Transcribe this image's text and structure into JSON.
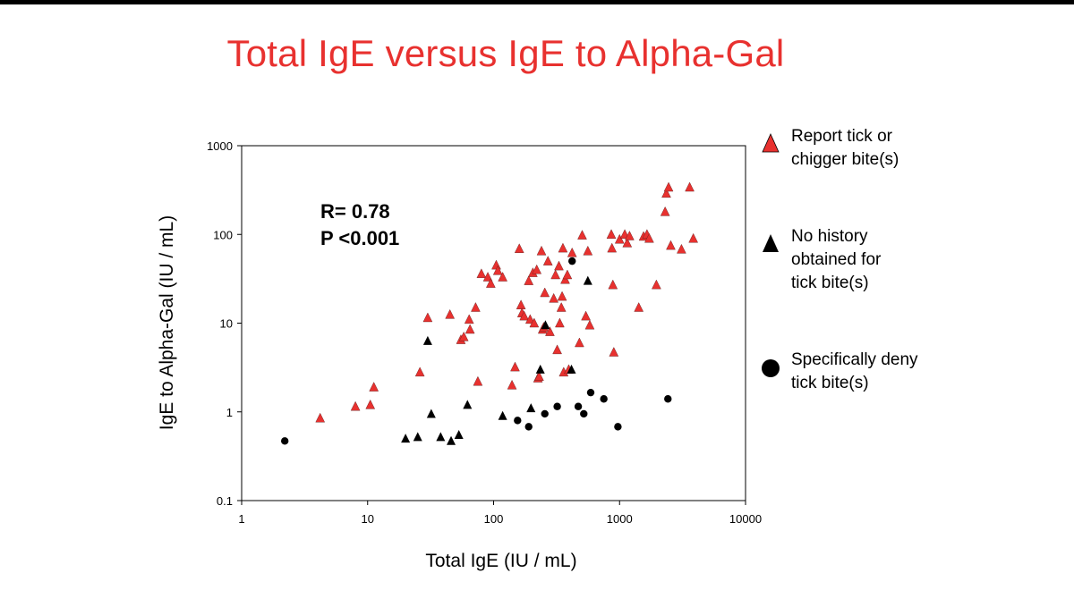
{
  "title": "Total IgE versus IgE to Alpha-Gal",
  "colors": {
    "title": "#e8312f",
    "red_marker": "#e8312f",
    "black_marker": "#000000"
  },
  "legend": [
    {
      "label": "Report tick or\nchigger bite(s)",
      "marker": "red-triangle"
    },
    {
      "label": "No history\nobtained for\ntick bite(s)",
      "marker": "black-triangle"
    },
    {
      "label": "Specifically deny\ntick bite(s)",
      "marker": "black-circle"
    }
  ],
  "chart_data": {
    "type": "scatter",
    "xlabel": "Total IgE (IU / mL)",
    "ylabel": "IgE to Alpha-Gal (IU / mL)",
    "xscale": "log",
    "yscale": "log",
    "xlim": [
      1,
      10000
    ],
    "ylim": [
      0.1,
      1000
    ],
    "xticks": [
      "1",
      "10",
      "100",
      "1000",
      "10000"
    ],
    "yticks": [
      "0.1",
      "1",
      "10",
      "100",
      "1000"
    ],
    "grid": false,
    "legend_position": "right",
    "annotations": [
      "R= 0.78",
      "P <0.001"
    ],
    "series": [
      {
        "name": "Report tick or chigger bite(s)",
        "marker": "triangle",
        "color": "#e8312f",
        "points": [
          [
            4.2,
            0.85
          ],
          [
            8,
            1.15
          ],
          [
            10.5,
            1.2
          ],
          [
            11.2,
            1.9
          ],
          [
            26,
            2.8
          ],
          [
            30,
            11.5
          ],
          [
            45,
            12.5
          ],
          [
            55,
            6.5
          ],
          [
            58,
            7
          ],
          [
            64,
            11
          ],
          [
            65,
            8.5
          ],
          [
            72,
            15
          ],
          [
            75,
            2.2
          ],
          [
            80,
            36
          ],
          [
            90,
            33
          ],
          [
            95,
            28
          ],
          [
            105,
            45
          ],
          [
            108,
            39
          ],
          [
            118,
            33
          ],
          [
            140,
            2
          ],
          [
            148,
            3.2
          ],
          [
            160,
            69
          ],
          [
            165,
            16
          ],
          [
            168,
            13
          ],
          [
            175,
            12
          ],
          [
            190,
            30
          ],
          [
            195,
            11
          ],
          [
            205,
            37
          ],
          [
            210,
            10
          ],
          [
            220,
            40
          ],
          [
            225,
            2.4
          ],
          [
            230,
            2.5
          ],
          [
            240,
            65
          ],
          [
            245,
            8.5
          ],
          [
            250,
            9
          ],
          [
            255,
            22
          ],
          [
            270,
            50
          ],
          [
            280,
            8
          ],
          [
            300,
            19
          ],
          [
            310,
            35
          ],
          [
            320,
            5
          ],
          [
            330,
            44
          ],
          [
            335,
            10
          ],
          [
            345,
            15
          ],
          [
            350,
            20
          ],
          [
            355,
            70
          ],
          [
            360,
            2.8
          ],
          [
            370,
            31
          ],
          [
            385,
            35
          ],
          [
            395,
            3
          ],
          [
            420,
            62
          ],
          [
            480,
            6
          ],
          [
            505,
            98
          ],
          [
            540,
            12
          ],
          [
            560,
            65
          ],
          [
            580,
            9.5
          ],
          [
            860,
            100
          ],
          [
            870,
            70
          ],
          [
            885,
            27
          ],
          [
            900,
            4.7
          ],
          [
            1000,
            88
          ],
          [
            1100,
            100
          ],
          [
            1150,
            80
          ],
          [
            1200,
            96
          ],
          [
            1420,
            15
          ],
          [
            1550,
            95
          ],
          [
            1650,
            100
          ],
          [
            1720,
            90
          ],
          [
            1960,
            27
          ],
          [
            2300,
            180
          ],
          [
            2350,
            290
          ],
          [
            2450,
            340
          ],
          [
            2550,
            75
          ],
          [
            3100,
            68
          ],
          [
            3600,
            340
          ],
          [
            3850,
            90
          ]
        ]
      },
      {
        "name": "No history obtained for tick bite(s)",
        "marker": "triangle",
        "color": "#000000",
        "points": [
          [
            20,
            0.5
          ],
          [
            25,
            0.52
          ],
          [
            30,
            6.3
          ],
          [
            32,
            0.95
          ],
          [
            38,
            0.52
          ],
          [
            46,
            0.47
          ],
          [
            53,
            0.55
          ],
          [
            62,
            1.2
          ],
          [
            118,
            0.9
          ],
          [
            198,
            1.1
          ],
          [
            235,
            3
          ],
          [
            258,
            9.5
          ],
          [
            415,
            3
          ],
          [
            560,
            30
          ]
        ]
      },
      {
        "name": "Specifically deny tick bite(s)",
        "marker": "circle",
        "color": "#000000",
        "points": [
          [
            2.2,
            0.47
          ],
          [
            155,
            0.8
          ],
          [
            190,
            0.68
          ],
          [
            255,
            0.95
          ],
          [
            320,
            1.15
          ],
          [
            420,
            50
          ],
          [
            470,
            1.15
          ],
          [
            520,
            0.95
          ],
          [
            590,
            1.65
          ],
          [
            750,
            1.4
          ],
          [
            970,
            0.68
          ],
          [
            2420,
            1.4
          ]
        ]
      }
    ]
  }
}
